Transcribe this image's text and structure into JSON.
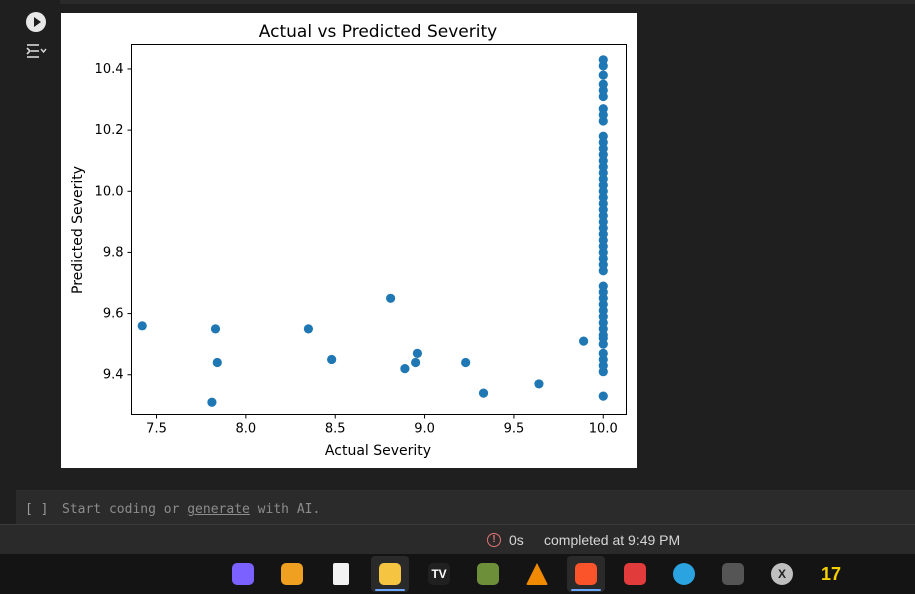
{
  "cell": {
    "run_icon": "play-circle-icon",
    "output_icon": "output-settings-icon"
  },
  "chart_data": {
    "type": "scatter",
    "title": "Actual vs Predicted Severity",
    "xlabel": "Actual Severity",
    "ylabel": "Predicted Severity",
    "xlim": [
      7.36,
      10.13
    ],
    "ylim": [
      9.27,
      10.48
    ],
    "xticks": [
      "7.5",
      "8.0",
      "8.5",
      "9.0",
      "9.5",
      "10.0"
    ],
    "yticks": [
      "9.4",
      "9.6",
      "9.8",
      "10.0",
      "10.2",
      "10.4"
    ],
    "xtick_values": [
      7.5,
      8.0,
      8.5,
      9.0,
      9.5,
      10.0
    ],
    "ytick_values": [
      9.4,
      9.6,
      9.8,
      10.0,
      10.2,
      10.4
    ],
    "grid": false,
    "color": "#1f77b4",
    "points": [
      [
        7.42,
        9.56
      ],
      [
        7.81,
        9.31
      ],
      [
        7.83,
        9.55
      ],
      [
        7.84,
        9.44
      ],
      [
        8.35,
        9.55
      ],
      [
        8.48,
        9.45
      ],
      [
        8.81,
        9.65
      ],
      [
        8.89,
        9.42
      ],
      [
        8.95,
        9.44
      ],
      [
        8.96,
        9.47
      ],
      [
        9.23,
        9.44
      ],
      [
        9.33,
        9.34
      ],
      [
        9.64,
        9.37
      ],
      [
        9.89,
        9.51
      ],
      [
        10.0,
        9.33
      ],
      [
        10.0,
        9.41
      ],
      [
        10.0,
        9.43
      ],
      [
        10.0,
        9.45
      ],
      [
        10.0,
        9.47
      ],
      [
        10.0,
        9.5
      ],
      [
        10.0,
        9.52
      ],
      [
        10.0,
        9.53
      ],
      [
        10.0,
        9.55
      ],
      [
        10.0,
        9.57
      ],
      [
        10.0,
        9.59
      ],
      [
        10.0,
        9.61
      ],
      [
        10.0,
        9.63
      ],
      [
        10.0,
        9.65
      ],
      [
        10.0,
        9.67
      ],
      [
        10.0,
        9.69
      ],
      [
        10.0,
        9.74
      ],
      [
        10.0,
        9.76
      ],
      [
        10.0,
        9.78
      ],
      [
        10.0,
        9.8
      ],
      [
        10.0,
        9.82
      ],
      [
        10.0,
        9.84
      ],
      [
        10.0,
        9.86
      ],
      [
        10.0,
        9.88
      ],
      [
        10.0,
        9.9
      ],
      [
        10.0,
        9.92
      ],
      [
        10.0,
        9.94
      ],
      [
        10.0,
        9.96
      ],
      [
        10.0,
        9.98
      ],
      [
        10.0,
        10.0
      ],
      [
        10.0,
        10.02
      ],
      [
        10.0,
        10.04
      ],
      [
        10.0,
        10.06
      ],
      [
        10.0,
        10.08
      ],
      [
        10.0,
        10.1
      ],
      [
        10.0,
        10.12
      ],
      [
        10.0,
        10.14
      ],
      [
        10.0,
        10.16
      ],
      [
        10.0,
        10.18
      ],
      [
        10.0,
        10.23
      ],
      [
        10.0,
        10.25
      ],
      [
        10.0,
        10.27
      ],
      [
        10.0,
        10.31
      ],
      [
        10.0,
        10.33
      ],
      [
        10.0,
        10.35
      ],
      [
        10.0,
        10.38
      ],
      [
        10.0,
        10.41
      ],
      [
        10.0,
        10.43
      ]
    ]
  },
  "editor": {
    "bracket": "[ ]",
    "prefix": "Start coding or ",
    "link": "generate",
    "suffix": " with AI."
  },
  "status": {
    "icon": "error-circle-icon",
    "elapsed": "0s",
    "completed": "completed at 9:49 PM"
  },
  "taskbar": {
    "items": [
      {
        "name": "copilot-icon",
        "color": "#7b61ff",
        "glyph": ""
      },
      {
        "name": "browser-app-icon",
        "color": "#f0a020",
        "glyph": ""
      },
      {
        "name": "file-icon",
        "color": "#f2f2f2",
        "glyph": ""
      },
      {
        "name": "file-explorer-icon",
        "color": "#f5c542",
        "glyph": ""
      },
      {
        "name": "tradingview-icon",
        "color": "#202020",
        "glyph": "TV"
      },
      {
        "name": "gpu-app-icon",
        "color": "#6e8f3a",
        "glyph": ""
      },
      {
        "name": "vlc-icon",
        "color": "#f08a00",
        "glyph": ""
      },
      {
        "name": "brave-icon",
        "color": "#fb542b",
        "glyph": ""
      },
      {
        "name": "record-app-icon",
        "color": "#e23b3b",
        "glyph": ""
      },
      {
        "name": "telegram-icon",
        "color": "#2aa3e0",
        "glyph": ""
      },
      {
        "name": "truck-game-icon",
        "color": "#555555",
        "glyph": ""
      },
      {
        "name": "x-app-icon",
        "color": "#bfbfbf",
        "glyph": "X"
      },
      {
        "name": "seventeen-app-icon",
        "color": "#f5d000",
        "glyph": "17"
      }
    ]
  }
}
